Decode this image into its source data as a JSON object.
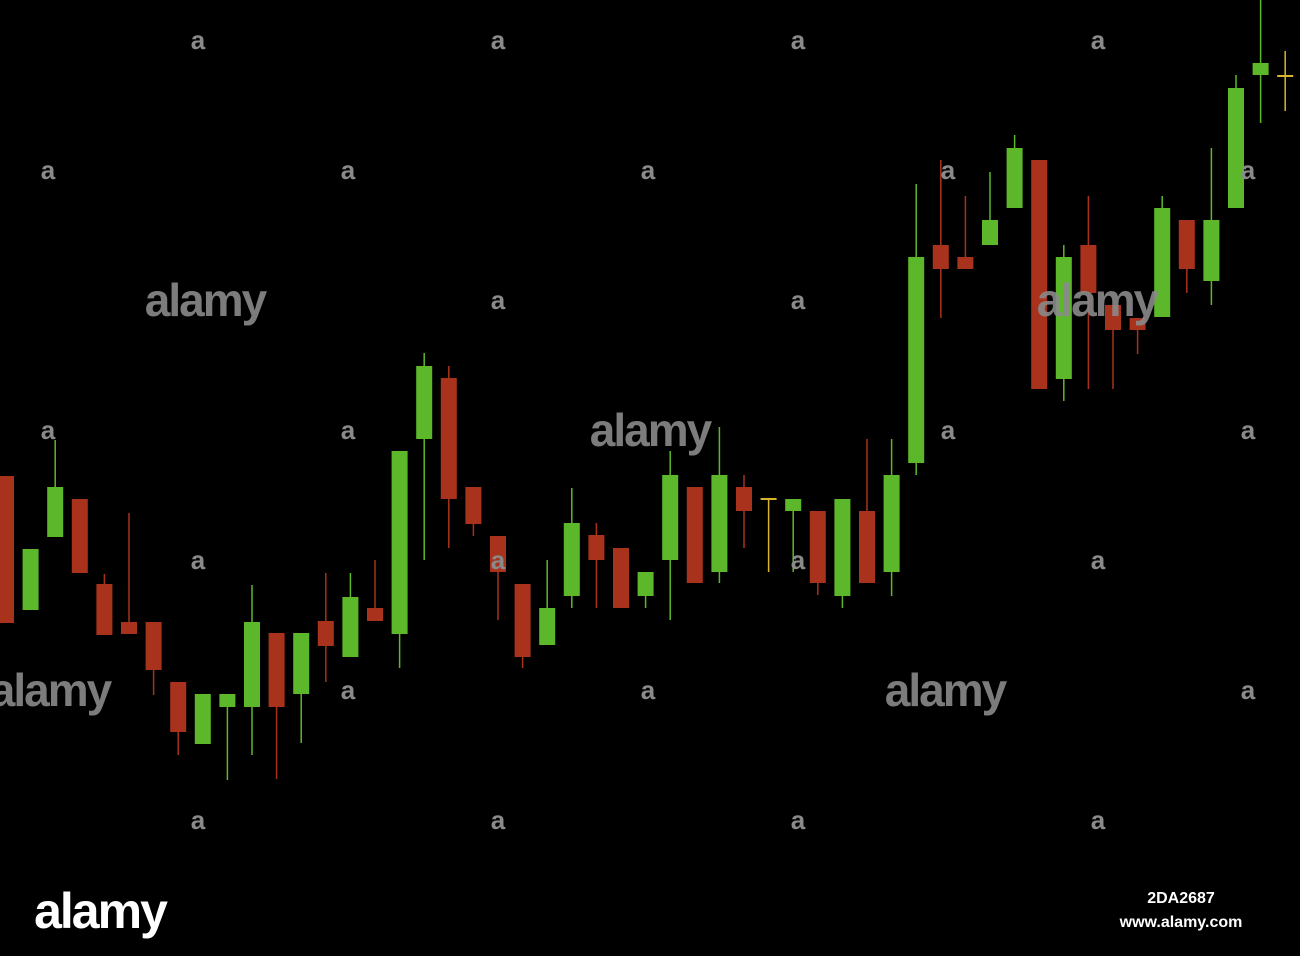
{
  "chart_data": {
    "type": "candlestick",
    "open": [
      480,
      346,
      419,
      457,
      372,
      334,
      334,
      274,
      212,
      249,
      249,
      323,
      262,
      335,
      299,
      348,
      322,
      517,
      578,
      469,
      420,
      372,
      311,
      360,
      421,
      408,
      360,
      396,
      469,
      384,
      469,
      457,
      445,
      445,
      360,
      445,
      384,
      493,
      711,
      699,
      711,
      748,
      796,
      577,
      711,
      651,
      638,
      639,
      736,
      675,
      748,
      881,
      880
    ],
    "high": [
      480,
      407,
      516,
      457,
      382,
      443,
      334,
      274,
      262,
      262,
      371,
      323,
      323,
      383,
      383,
      396,
      505,
      603,
      590,
      469,
      420,
      372,
      396,
      468,
      433,
      408,
      384,
      505,
      469,
      529,
      481,
      457,
      457,
      445,
      457,
      517,
      517,
      772,
      796,
      760,
      784,
      821,
      796,
      711,
      760,
      651,
      638,
      760,
      736,
      808,
      881,
      956,
      905
    ],
    "low": [
      333,
      346,
      419,
      383,
      321,
      322,
      261,
      201,
      212,
      176,
      201,
      177,
      213,
      274,
      299,
      335,
      288,
      396,
      408,
      420,
      336,
      288,
      311,
      348,
      348,
      348,
      348,
      336,
      373,
      373,
      408,
      384,
      384,
      361,
      348,
      373,
      360,
      481,
      638,
      687,
      711,
      748,
      567,
      555,
      567,
      567,
      602,
      639,
      663,
      651,
      748,
      833,
      845
    ],
    "close": [
      333,
      407,
      469,
      383,
      321,
      322,
      286,
      224,
      262,
      262,
      334,
      249,
      323,
      310,
      359,
      335,
      505,
      590,
      457,
      432,
      384,
      299,
      348,
      433,
      396,
      348,
      384,
      481,
      373,
      481,
      445,
      457,
      457,
      373,
      457,
      373,
      481,
      699,
      687,
      687,
      736,
      808,
      567,
      699,
      663,
      626,
      626,
      748,
      687,
      736,
      868,
      893,
      880
    ],
    "up_color": "#5cb82a",
    "down_color": "#a8321c",
    "flat_color": "#d9b52c",
    "ylim": [
      0,
      956
    ]
  },
  "watermark": {
    "logo": "alamy",
    "mark": "a",
    "id": "2DA2687",
    "url": "www.alamy.com"
  }
}
